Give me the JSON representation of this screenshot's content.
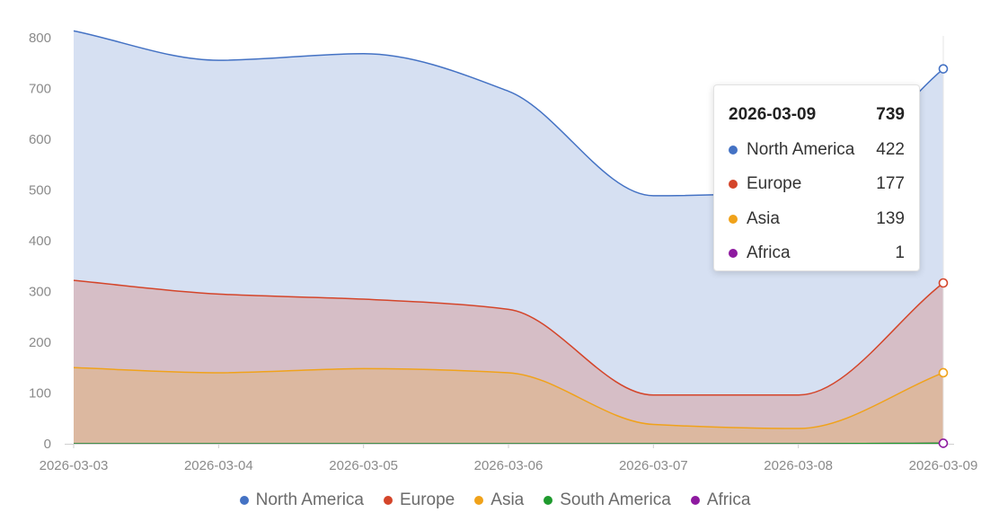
{
  "chart_data": {
    "type": "area",
    "stacked": true,
    "categories": [
      "2026-03-03",
      "2026-03-04",
      "2026-03-05",
      "2026-03-06",
      "2026-03-07",
      "2026-03-08",
      "2026-03-09"
    ],
    "ylim": [
      0,
      850
    ],
    "yticks": [
      0,
      100,
      200,
      300,
      400,
      500,
      600,
      700,
      800
    ],
    "series": [
      {
        "name": "Africa",
        "color": "#8e1aa0",
        "values": [
          0,
          0,
          0,
          0,
          0,
          0,
          1
        ]
      },
      {
        "name": "South America",
        "color": "#1f9a2e",
        "values": [
          0,
          0,
          0,
          0,
          0,
          0,
          0
        ]
      },
      {
        "name": "Asia",
        "color": "#f0a21a",
        "values": [
          150,
          140,
          148,
          140,
          38,
          30,
          139
        ]
      },
      {
        "name": "Europe",
        "color": "#d4452a",
        "values": [
          172,
          155,
          137,
          125,
          58,
          66,
          177
        ]
      },
      {
        "name": "North America",
        "color": "#4472c4",
        "values": [
          492,
          461,
          484,
          430,
          393,
          402,
          422
        ]
      }
    ],
    "legend_order": [
      "North America",
      "Europe",
      "Asia",
      "South America",
      "Africa"
    ],
    "legend_position": "bottom-center"
  },
  "tooltip": {
    "date": "2026-03-09",
    "total": "739",
    "rows": [
      {
        "name": "North America",
        "value": "422",
        "color": "#4472c4"
      },
      {
        "name": "Europe",
        "value": "177",
        "color": "#d4452a"
      },
      {
        "name": "Asia",
        "value": "139",
        "color": "#f0a21a"
      },
      {
        "name": "Africa",
        "value": "1",
        "color": "#8e1aa0"
      }
    ]
  }
}
